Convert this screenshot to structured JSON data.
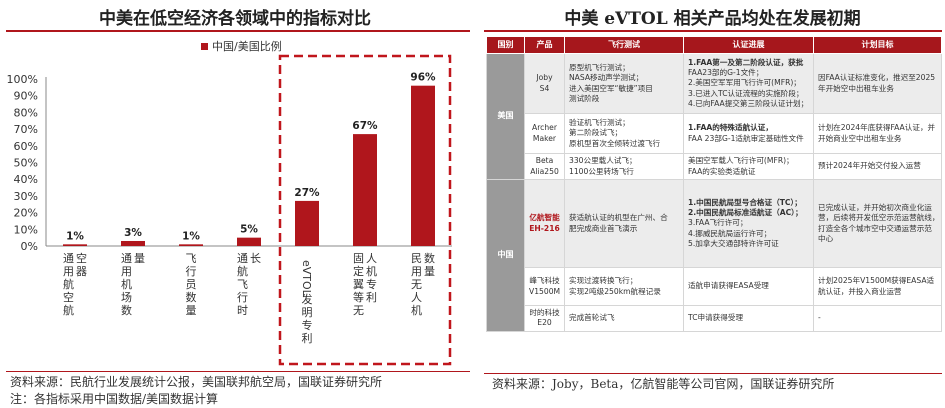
{
  "left_panel": {
    "title": "中美在低空经济各领域中的指标对比",
    "source": "资料来源：民航行业发展统计公报，美国联邦航空局，国联证券研究所",
    "note": "注：各指标采用中国数据/美国数据计算"
  },
  "chart_data": {
    "type": "bar",
    "title": "中美在低空经济各领域中的指标对比",
    "legend": [
      "中国/美国比例"
    ],
    "legend_position": "top",
    "categories": [
      "通用航空航空器",
      "通用机场数量",
      "飞行员数量",
      "通航飞行时长",
      "eVTOL发明专利",
      "固定翼等无人机专利",
      "民用无人机数量"
    ],
    "series": [
      {
        "name": "中国/美国比例",
        "values": [
          1,
          3,
          1,
          5,
          27,
          67,
          96
        ]
      }
    ],
    "data_labels": [
      "1%",
      "3%",
      "1%",
      "5%",
      "27%",
      "67%",
      "96%"
    ],
    "yticks": [
      "0%",
      "10%",
      "20%",
      "30%",
      "40%",
      "50%",
      "60%",
      "70%",
      "80%",
      "90%",
      "100%"
    ],
    "ylim": [
      0,
      100
    ],
    "grid": false,
    "highlight_box_categories": [
      4,
      5,
      6
    ],
    "colors": {
      "bar": "#b0161c",
      "box": "#c0161c"
    }
  },
  "right_panel": {
    "title": "中美 eVTOL 相关产品均处在发展初期",
    "source": "资料来源：Joby，Beta，亿航智能等公司官网，国联证券研究所",
    "headers": [
      "国别",
      "产品",
      "飞行测试",
      "认证进展",
      "计划目标"
    ],
    "groups": [
      {
        "country": "美国",
        "rows": [
          {
            "product": [
              "Joby",
              "S4"
            ],
            "test": [
              "原型机飞行测试；",
              "NASA移动声学测试；",
              "进入美国空军“敏捷”项目",
              "测试阶段"
            ],
            "cert": [
              "1.FAA第一及第二阶段认证，获批",
              "FAA23部的G-1文件；",
              "2.美国空军军用飞行许可(MFR)；",
              "3.已进入TC认证流程的实施阶段；",
              "4.已向FAA提交第三阶段认证计划；"
            ],
            "cert_bold": [
              true,
              false,
              false,
              false,
              false
            ],
            "plan": [
              "因FAA认证标准变化，推迟至2025",
              "年开始空中出租车业务"
            ]
          },
          {
            "product": [
              "Archer",
              "Maker"
            ],
            "test": [
              "验证机飞行测试；",
              "第二阶段试飞；",
              "原机型首次全倾转过渡飞行"
            ],
            "cert": [
              "1.FAA的特殊适航认证，",
              "FAA 23部G-1适航审定基础性文件"
            ],
            "cert_bold": [
              true,
              false
            ],
            "plan": [
              "计划在2024年底获得FAA认证，并",
              "开始商业空中出租车业务"
            ]
          },
          {
            "product": [
              "Beta",
              "Alia250"
            ],
            "test": [
              "330公里载人试飞；",
              "1100公里转场飞行"
            ],
            "cert": [
              "美国空军载人飞行许可(MFR)；",
              "FAA的实验类适航证"
            ],
            "cert_bold": [
              false,
              false
            ],
            "plan": [
              "预计2024年开始交付投入运营"
            ]
          }
        ]
      },
      {
        "country": "中国",
        "rows": [
          {
            "product": [
              "亿航智能",
              "EH-216"
            ],
            "product_highlight": true,
            "test": [
              "获适航认证的机型在广州、合",
              "肥完成商业首飞演示"
            ],
            "cert": [
              "1.中国民航局型号合格证（TC）；",
              "2.中国民航局标准适航证（AC）；",
              "3.FAA飞行许可；",
              "4.挪威民航局运行许可；",
              "5.加拿大交通部特许许可证"
            ],
            "cert_bold": [
              true,
              true,
              false,
              false,
              false
            ],
            "plan": [
              "已完成认证，并开始初次商业化运",
              "营，后续将开发低空示范运营航线，",
              "打造全各个城市空中交通运营示范",
              "中心"
            ]
          },
          {
            "product": [
              "峰飞科技",
              "V1500M"
            ],
            "test": [
              "实现过渡转换飞行；",
              "实现2吨级250km航程记录"
            ],
            "cert": [
              "适航申请获得EASA受理"
            ],
            "cert_bold": [
              false
            ],
            "plan": [
              "计划2025年V1500M获得EASA适",
              "航认证，并投入商业运营"
            ]
          },
          {
            "product": [
              "时的科技",
              "E20"
            ],
            "test": [
              "完成首轮试飞"
            ],
            "cert": [
              "TC申请获得受理"
            ],
            "cert_bold": [
              false
            ],
            "plan": [
              "-"
            ]
          }
        ]
      }
    ]
  }
}
